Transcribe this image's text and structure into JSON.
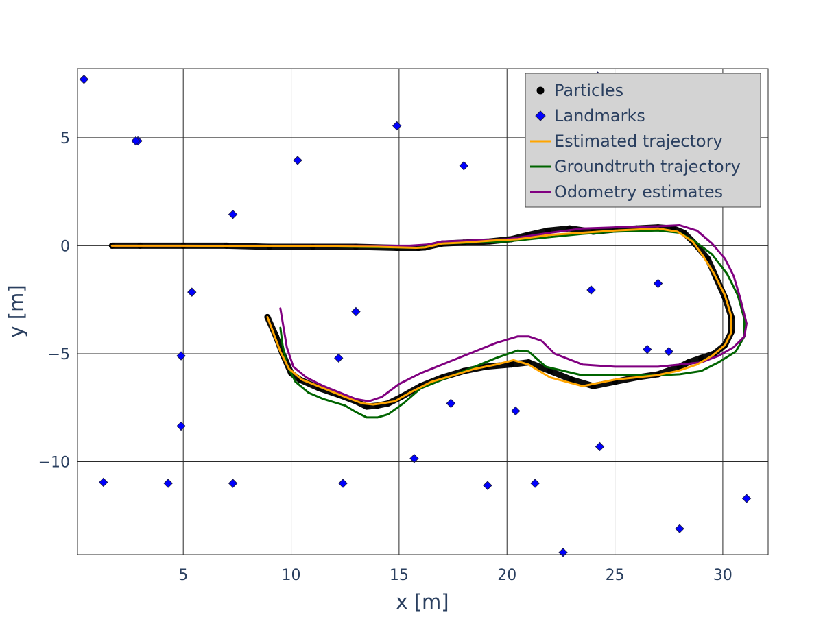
{
  "chart_data": {
    "type": "scatter",
    "xlabel": "x [m]",
    "ylabel": "y [m]",
    "xlim": [
      0.1,
      32.1
    ],
    "ylim": [
      -14.3,
      8.2
    ],
    "xticks": [
      5,
      10,
      15,
      20,
      25,
      30
    ],
    "yticks": [
      5,
      0,
      -5,
      -10
    ],
    "xtick_labels": [
      "5",
      "10",
      "15",
      "20",
      "25",
      "30"
    ],
    "ytick_labels": [
      "5",
      "0",
      "−5",
      "−10"
    ],
    "grid": true,
    "legend_placement": "top-right",
    "series": [
      {
        "name": "Particles",
        "kind": "markers-circle",
        "color": "#000000",
        "x": [
          1.7,
          3,
          5,
          7,
          9,
          11,
          13,
          14.9,
          15.9,
          16.2,
          17,
          18,
          19.2,
          20.2,
          21,
          21.9,
          22.9,
          24,
          25,
          26,
          27,
          27.7,
          28.2,
          28.7,
          29.3,
          29.7,
          30.1,
          30.4,
          30.4,
          30.1,
          29.6,
          29.0,
          28.4,
          28.0,
          27.0,
          26.0,
          25.0,
          24.0,
          23.0,
          22.0,
          21.0,
          20.2,
          19.0,
          18.0,
          17.0,
          16.0,
          15.1,
          14.5,
          14.0,
          13.5,
          13.0,
          12.2,
          11.3,
          10.4,
          10.0,
          9.6,
          9.3,
          8.9
        ],
        "y": [
          0.0,
          0.0,
          0.0,
          0.0,
          -0.05,
          -0.05,
          -0.05,
          -0.1,
          -0.1,
          -0.08,
          0.1,
          0.15,
          0.2,
          0.3,
          0.5,
          0.7,
          0.8,
          0.65,
          0.75,
          0.8,
          0.85,
          0.8,
          0.6,
          0.1,
          -0.6,
          -1.5,
          -2.4,
          -3.3,
          -4.0,
          -4.6,
          -5.0,
          -5.2,
          -5.4,
          -5.6,
          -5.95,
          -6.1,
          -6.3,
          -6.5,
          -6.2,
          -5.8,
          -5.4,
          -5.5,
          -5.6,
          -5.8,
          -6.1,
          -6.5,
          -7.0,
          -7.3,
          -7.4,
          -7.45,
          -7.2,
          -6.9,
          -6.6,
          -6.2,
          -5.9,
          -5.0,
          -4.2,
          -3.3
        ]
      },
      {
        "name": "Landmarks",
        "kind": "markers-diamond",
        "color": "#0000ff",
        "x": [
          0.4,
          2.9,
          2.8,
          7.3,
          5.4,
          4.9,
          4.9,
          1.3,
          4.3,
          7.3,
          10.3,
          12.2,
          12.4,
          13.0,
          14.9,
          15.7,
          17.4,
          17.4,
          18.0,
          19.1,
          20.4,
          21.3,
          22.6,
          23.9,
          24.3,
          24.2,
          26.5,
          27.0,
          27.5,
          28.0,
          31.1
        ],
        "y": [
          7.7,
          4.85,
          4.85,
          1.45,
          -2.15,
          -5.1,
          -8.35,
          -10.95,
          -11.0,
          -11.0,
          3.95,
          -5.2,
          -11.0,
          -3.05,
          5.55,
          -9.85,
          -7.3,
          -7.3,
          3.7,
          -11.1,
          -7.65,
          -11.0,
          -14.2,
          -2.05,
          -9.3,
          7.85,
          -4.8,
          -1.75,
          -4.9,
          -13.1,
          -11.7
        ]
      },
      {
        "name": "Estimated trajectory",
        "kind": "line",
        "color": "#ffa500",
        "x": [
          1.7,
          5,
          10,
          14,
          15.8,
          16.2,
          17,
          18,
          19.5,
          20.5,
          22,
          23.5,
          25,
          27,
          27.9,
          28.6,
          29.1,
          29.6,
          30.1,
          30.4,
          30.4,
          30.1,
          29.5,
          28.8,
          27.9,
          26.9,
          25.0,
          23.5,
          22.0,
          21.0,
          20.3,
          19.5,
          18.5,
          17.5,
          16.5,
          15.5,
          14.8,
          14.2,
          13.8,
          13.3,
          12.5,
          11.5,
          10.5,
          9.9,
          9.5,
          9.2,
          8.9
        ],
        "y": [
          0.0,
          0.0,
          -0.02,
          -0.05,
          -0.1,
          -0.08,
          0.1,
          0.15,
          0.25,
          0.3,
          0.5,
          0.6,
          0.7,
          0.8,
          0.65,
          0.2,
          -0.5,
          -1.3,
          -2.3,
          -3.3,
          -4.0,
          -4.6,
          -5.1,
          -5.5,
          -5.8,
          -6.0,
          -6.2,
          -6.5,
          -6.1,
          -5.5,
          -5.3,
          -5.5,
          -5.7,
          -6.0,
          -6.3,
          -6.8,
          -7.2,
          -7.3,
          -7.35,
          -7.3,
          -7.0,
          -6.6,
          -6.2,
          -5.7,
          -4.9,
          -4.1,
          -3.3
        ]
      },
      {
        "name": "Groundtruth trajectory",
        "kind": "line",
        "color": "#006400",
        "x": [
          1.7,
          10,
          15.8,
          16.3,
          17,
          20,
          22,
          23.5,
          25,
          27,
          28,
          28.7,
          29.5,
          30.2,
          30.7,
          31.0,
          31.0,
          30.6,
          29.8,
          29.0,
          28.0,
          27.0,
          25.0,
          23.5,
          21.8,
          21.0,
          20.5,
          19.5,
          18.5,
          17.5,
          16.0,
          15.2,
          14.5,
          14.0,
          13.5,
          13.0,
          12.5,
          11.5,
          10.8,
          10.2,
          9.8,
          9.6,
          9.5
        ],
        "y": [
          0.0,
          0.0,
          -0.1,
          -0.05,
          0.1,
          0.2,
          0.4,
          0.55,
          0.65,
          0.7,
          0.6,
          0.2,
          -0.4,
          -1.3,
          -2.3,
          -3.4,
          -4.2,
          -4.9,
          -5.4,
          -5.8,
          -5.95,
          -6.0,
          -6.0,
          -6.0,
          -5.6,
          -4.9,
          -4.85,
          -5.2,
          -5.6,
          -6.0,
          -6.6,
          -7.3,
          -7.8,
          -7.95,
          -7.95,
          -7.7,
          -7.4,
          -7.1,
          -6.8,
          -6.3,
          -5.5,
          -4.6,
          -3.8
        ]
      },
      {
        "name": "Odometry estimates",
        "kind": "line",
        "color": "#800080",
        "x": [
          1.7,
          10,
          15.5,
          16.3,
          17,
          20,
          22,
          23.5,
          25,
          27,
          28,
          28.8,
          29.5,
          30.1,
          30.5,
          30.8,
          31.1,
          31.0,
          30.5,
          29.8,
          29.0,
          28.0,
          27.0,
          25.0,
          23.5,
          22.2,
          21.6,
          21.0,
          20.5,
          19.5,
          18.5,
          17.5,
          16.0,
          15.0,
          14.2,
          13.6,
          13.0,
          12.5,
          11.5,
          10.7,
          10.1,
          9.8,
          9.5
        ],
        "y": [
          0.0,
          0.0,
          0.0,
          0.05,
          0.2,
          0.3,
          0.6,
          0.8,
          0.85,
          0.9,
          0.95,
          0.7,
          0.1,
          -0.6,
          -1.4,
          -2.4,
          -3.6,
          -4.2,
          -4.7,
          -5.1,
          -5.4,
          -5.5,
          -5.6,
          -5.6,
          -5.5,
          -5.0,
          -4.4,
          -4.2,
          -4.2,
          -4.5,
          -4.9,
          -5.3,
          -5.9,
          -6.4,
          -7.0,
          -7.2,
          -7.1,
          -6.9,
          -6.5,
          -6.1,
          -5.6,
          -4.7,
          -2.9
        ]
      }
    ]
  }
}
